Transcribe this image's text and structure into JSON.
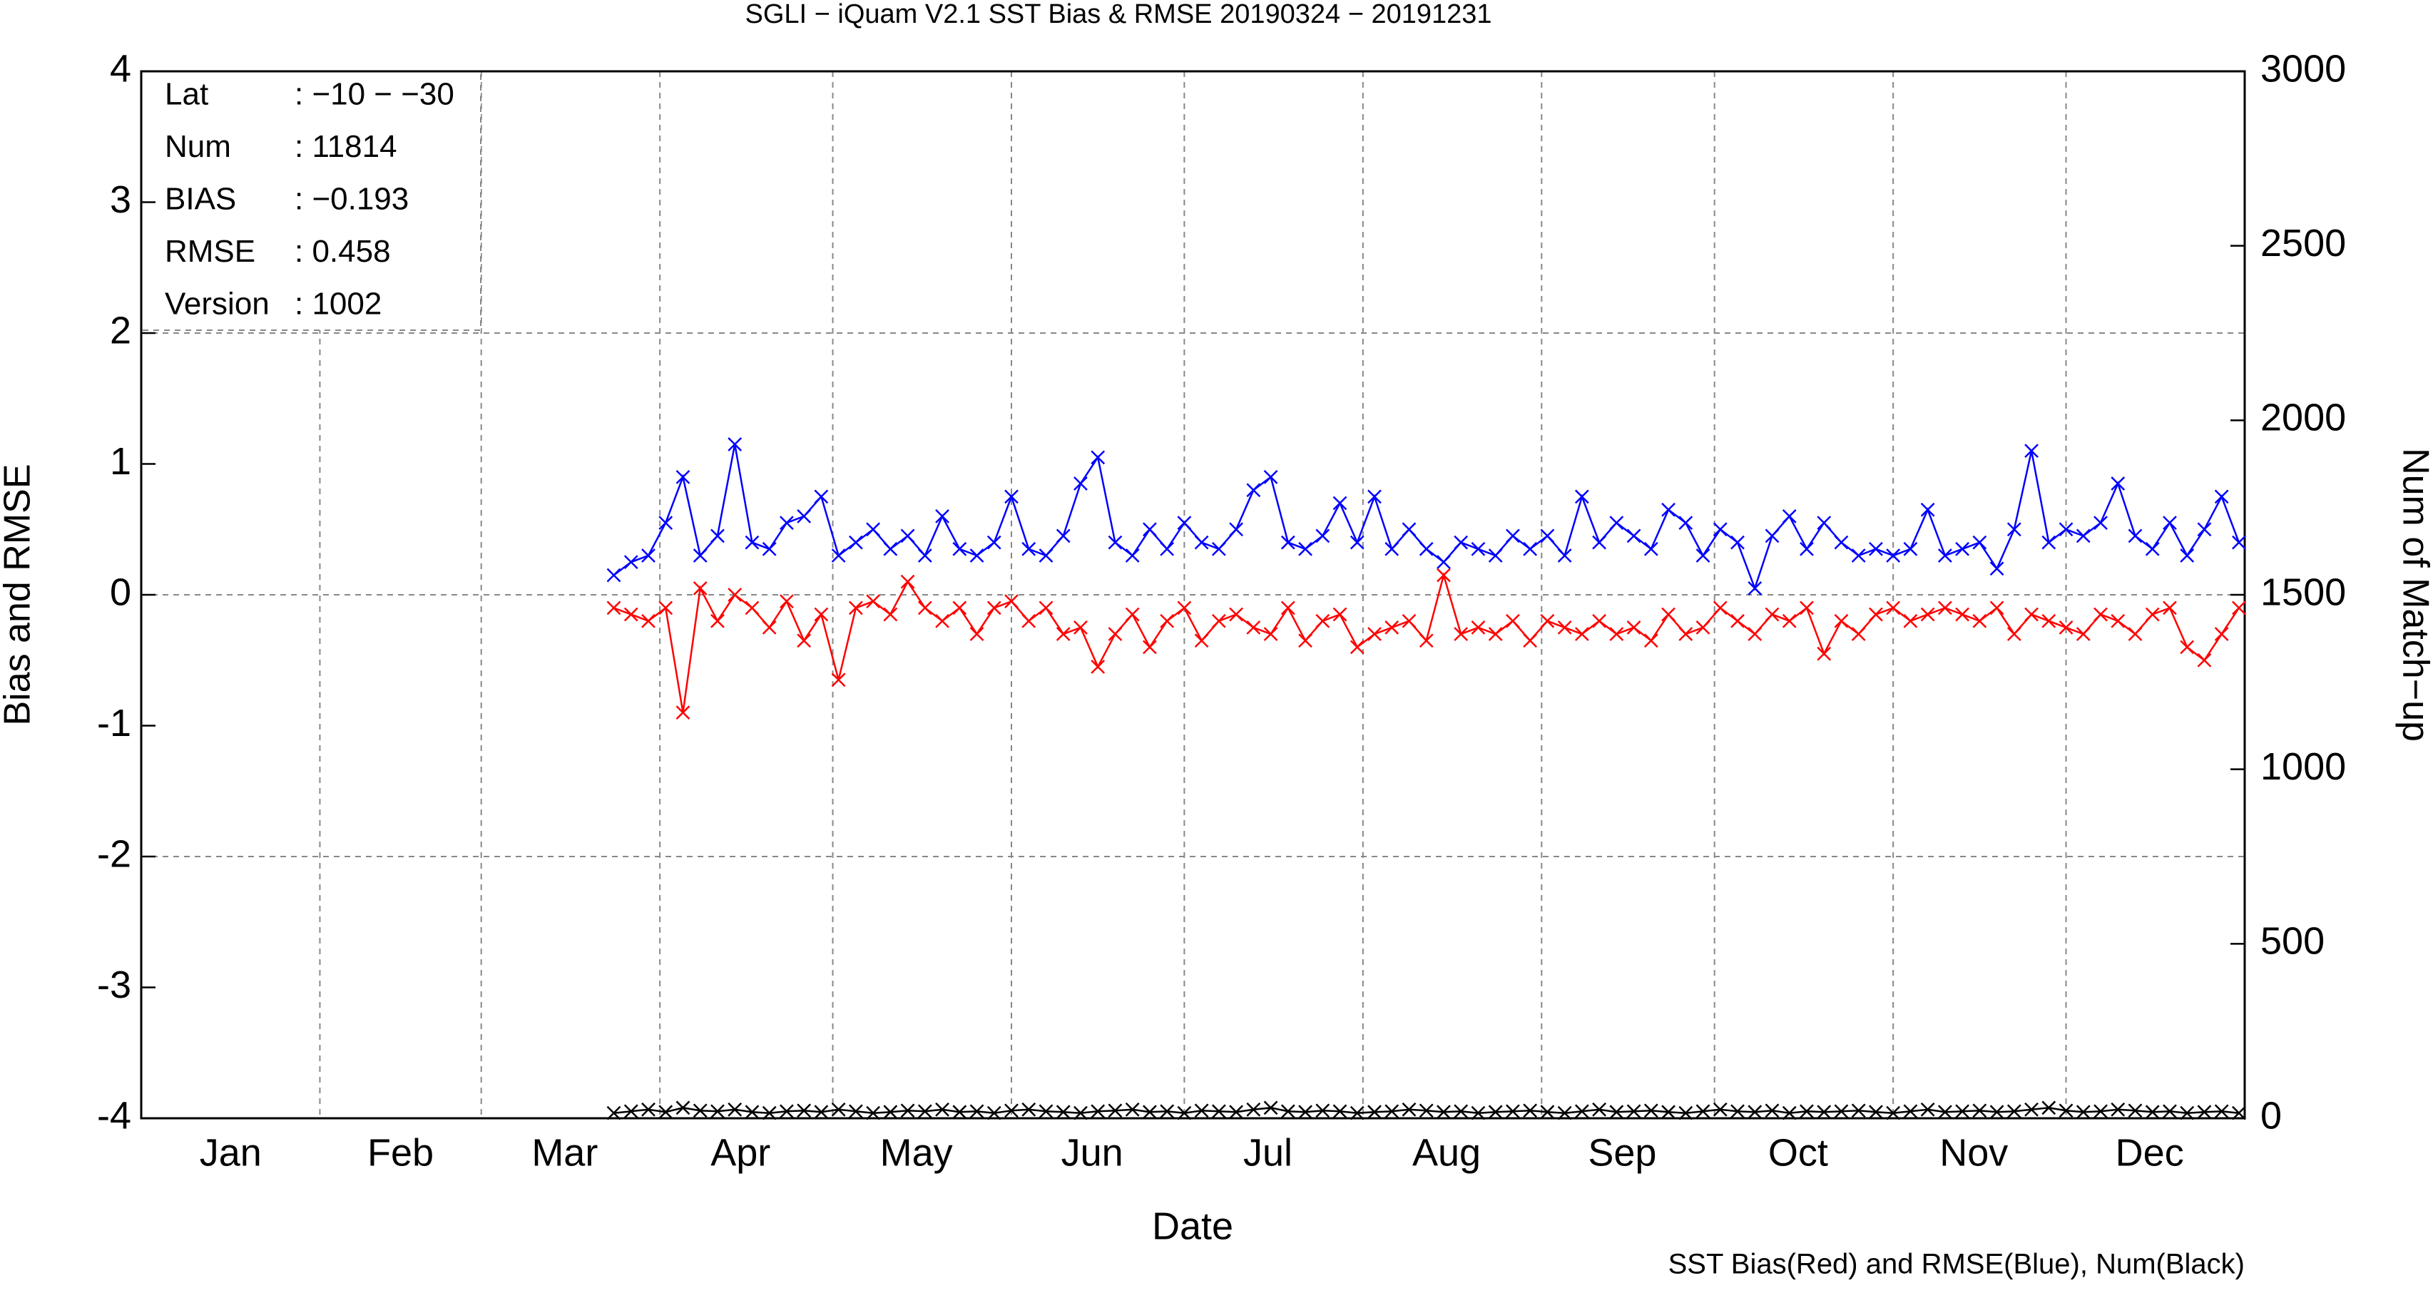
{
  "chart_data": {
    "type": "line",
    "title": "SGLI − iQuam V2.1 SST Bias & RMSE 20190324 − 20191231",
    "xlabel": "Date",
    "ylabel": "Bias and RMSE",
    "y2label": "Num of Match−up",
    "footnote": "SST Bias(Red) and RMSE(Blue), Num(Black)",
    "annotations": [
      {
        "label": "Lat",
        "value": ": −10 − −30"
      },
      {
        "label": "Num",
        "value": ": 11814"
      },
      {
        "label": "BIAS",
        "value": ": −0.193"
      },
      {
        "label": "RMSE",
        "value": ": 0.458"
      },
      {
        "label": "Version",
        "value": ": 1002"
      }
    ],
    "xlim": [
      0,
      365
    ],
    "xticks": [
      {
        "value": 15.5,
        "label": "Jan"
      },
      {
        "value": 45,
        "label": "Feb"
      },
      {
        "value": 73.5,
        "label": "Mar"
      },
      {
        "value": 104,
        "label": "Apr"
      },
      {
        "value": 134.5,
        "label": "May"
      },
      {
        "value": 165,
        "label": "Jun"
      },
      {
        "value": 195.5,
        "label": "Jul"
      },
      {
        "value": 226.5,
        "label": "Aug"
      },
      {
        "value": 257,
        "label": "Sep"
      },
      {
        "value": 287.5,
        "label": "Oct"
      },
      {
        "value": 318,
        "label": "Nov"
      },
      {
        "value": 348.5,
        "label": "Dec"
      }
    ],
    "xgrid": [
      31,
      59,
      90,
      120,
      151,
      181,
      212,
      243,
      273,
      304,
      334
    ],
    "ylim": [
      -4,
      4
    ],
    "yticks": [
      -4,
      -3,
      -2,
      -1,
      0,
      1,
      2,
      3,
      4
    ],
    "ygrid": [
      -2,
      0,
      2
    ],
    "y2lim": [
      0,
      3000
    ],
    "y2ticks": [
      0,
      500,
      1000,
      1500,
      2000,
      2500,
      3000
    ],
    "grid": true,
    "x": [
      82,
      85,
      88,
      91,
      94,
      97,
      100,
      103,
      106,
      109,
      112,
      115,
      118,
      121,
      124,
      127,
      130,
      133,
      136,
      139,
      142,
      145,
      148,
      151,
      154,
      157,
      160,
      163,
      166,
      169,
      172,
      175,
      178,
      181,
      184,
      187,
      190,
      193,
      196,
      199,
      202,
      205,
      208,
      211,
      214,
      217,
      220,
      223,
      226,
      229,
      232,
      235,
      238,
      241,
      244,
      247,
      250,
      253,
      256,
      259,
      262,
      265,
      268,
      271,
      274,
      277,
      280,
      283,
      286,
      289,
      292,
      295,
      298,
      301,
      304,
      307,
      310,
      313,
      316,
      319,
      322,
      325,
      328,
      331,
      334,
      337,
      340,
      343,
      346,
      349,
      352,
      355,
      358,
      361,
      364
    ],
    "series": [
      {
        "name": "RMSE",
        "color": "#0000ff",
        "values": [
          0.15,
          0.25,
          0.3,
          0.55,
          0.9,
          0.3,
          0.45,
          1.15,
          0.4,
          0.35,
          0.55,
          0.6,
          0.75,
          0.3,
          0.4,
          0.5,
          0.35,
          0.45,
          0.3,
          0.6,
          0.35,
          0.3,
          0.4,
          0.75,
          0.35,
          0.3,
          0.45,
          0.85,
          1.05,
          0.4,
          0.3,
          0.5,
          0.35,
          0.55,
          0.4,
          0.35,
          0.5,
          0.8,
          0.9,
          0.4,
          0.35,
          0.45,
          0.7,
          0.4,
          0.75,
          0.35,
          0.5,
          0.35,
          0.25,
          0.4,
          0.35,
          0.3,
          0.45,
          0.35,
          0.45,
          0.3,
          0.75,
          0.4,
          0.55,
          0.45,
          0.35,
          0.65,
          0.55,
          0.3,
          0.5,
          0.4,
          0.05,
          0.45,
          0.6,
          0.35,
          0.55,
          0.4,
          0.3,
          0.35,
          0.3,
          0.35,
          0.65,
          0.3,
          0.35,
          0.4,
          0.2,
          0.5,
          1.1,
          0.4,
          0.5,
          0.45,
          0.55,
          0.85,
          0.45,
          0.35,
          0.55,
          0.3,
          0.5,
          0.75,
          0.4
        ]
      },
      {
        "name": "SST Bias",
        "color": "#ff0000",
        "values": [
          -0.1,
          -0.15,
          -0.2,
          -0.1,
          -0.9,
          0.05,
          -0.2,
          0.0,
          -0.1,
          -0.25,
          -0.05,
          -0.35,
          -0.15,
          -0.65,
          -0.1,
          -0.05,
          -0.15,
          0.1,
          -0.1,
          -0.2,
          -0.1,
          -0.3,
          -0.1,
          -0.05,
          -0.2,
          -0.1,
          -0.3,
          -0.25,
          -0.55,
          -0.3,
          -0.15,
          -0.4,
          -0.2,
          -0.1,
          -0.35,
          -0.2,
          -0.15,
          -0.25,
          -0.3,
          -0.1,
          -0.35,
          -0.2,
          -0.15,
          -0.4,
          -0.3,
          -0.25,
          -0.2,
          -0.35,
          0.15,
          -0.3,
          -0.25,
          -0.3,
          -0.2,
          -0.35,
          -0.2,
          -0.25,
          -0.3,
          -0.2,
          -0.3,
          -0.25,
          -0.35,
          -0.15,
          -0.3,
          -0.25,
          -0.1,
          -0.2,
          -0.3,
          -0.15,
          -0.2,
          -0.1,
          -0.45,
          -0.2,
          -0.3,
          -0.15,
          -0.1,
          -0.2,
          -0.15,
          -0.1,
          -0.15,
          -0.2,
          -0.1,
          -0.3,
          -0.15,
          -0.2,
          -0.25,
          -0.3,
          -0.15,
          -0.2,
          -0.3,
          -0.15,
          -0.1,
          -0.4,
          -0.5,
          -0.3,
          -0.1
        ]
      },
      {
        "name": "Num",
        "color": "#000000",
        "axis": "y2",
        "values": [
          15,
          20,
          25,
          18,
          30,
          22,
          20,
          25,
          18,
          15,
          20,
          22,
          18,
          25,
          20,
          15,
          18,
          22,
          20,
          25,
          18,
          20,
          15,
          22,
          25,
          20,
          18,
          15,
          20,
          22,
          25,
          18,
          20,
          15,
          22,
          20,
          18,
          25,
          30,
          20,
          18,
          22,
          20,
          15,
          18,
          20,
          25,
          22,
          18,
          20,
          15,
          18,
          20,
          22,
          18,
          15,
          20,
          25,
          18,
          20,
          22,
          18,
          15,
          20,
          25,
          20,
          18,
          22,
          15,
          20,
          18,
          20,
          22,
          18,
          15,
          20,
          25,
          18,
          20,
          22,
          18,
          20,
          25,
          30,
          22,
          18,
          20,
          25,
          22,
          18,
          20,
          15,
          18,
          20,
          15
        ]
      }
    ]
  }
}
